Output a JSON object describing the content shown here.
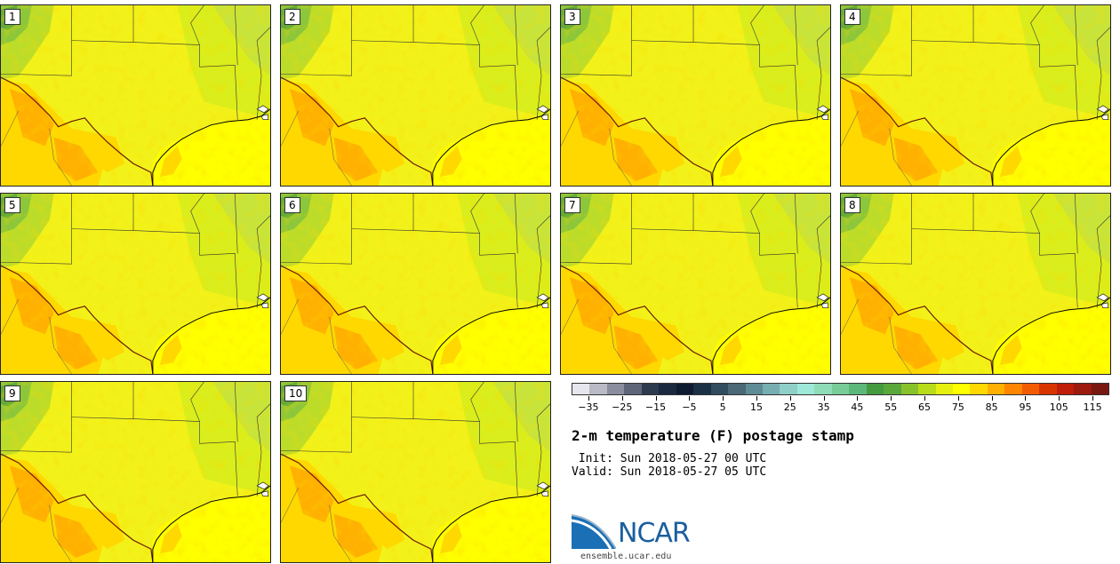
{
  "panels": [
    "1",
    "2",
    "3",
    "4",
    "5",
    "6",
    "7",
    "8",
    "9",
    "10"
  ],
  "colorbar": {
    "colors": [
      "#e6e6ee",
      "#b9bac6",
      "#8a8d9e",
      "#5f6579",
      "#2e3a4e",
      "#1b2940",
      "#0d1a30",
      "#1b3045",
      "#324c5f",
      "#4a6876",
      "#5e8c96",
      "#76aeb2",
      "#8fcfc7",
      "#9ee8d9",
      "#8fdcb8",
      "#78cc98",
      "#5cb87a",
      "#449a3e",
      "#5aa83c",
      "#88c22a",
      "#b9dc1a",
      "#e6f00e",
      "#ffff00",
      "#ffd800",
      "#ffb000",
      "#ff8600",
      "#f25c00",
      "#d83400",
      "#be1e0a",
      "#9c1a0e",
      "#781810"
    ],
    "tick_labels": [
      "−35",
      "−25",
      "−15",
      "−5",
      "5",
      "15",
      "25",
      "35",
      "45",
      "55",
      "65",
      "75",
      "85",
      "95",
      "105",
      "115"
    ],
    "range": [
      -40,
      120
    ]
  },
  "title": "2-m temperature (F) postage stamp",
  "init": " Init: Sun 2018-05-27 00 UTC",
  "valid": "Valid: Sun 2018-05-27 05 UTC",
  "logo_text": "NCAR",
  "site": "ensemble.ucar.edu"
}
